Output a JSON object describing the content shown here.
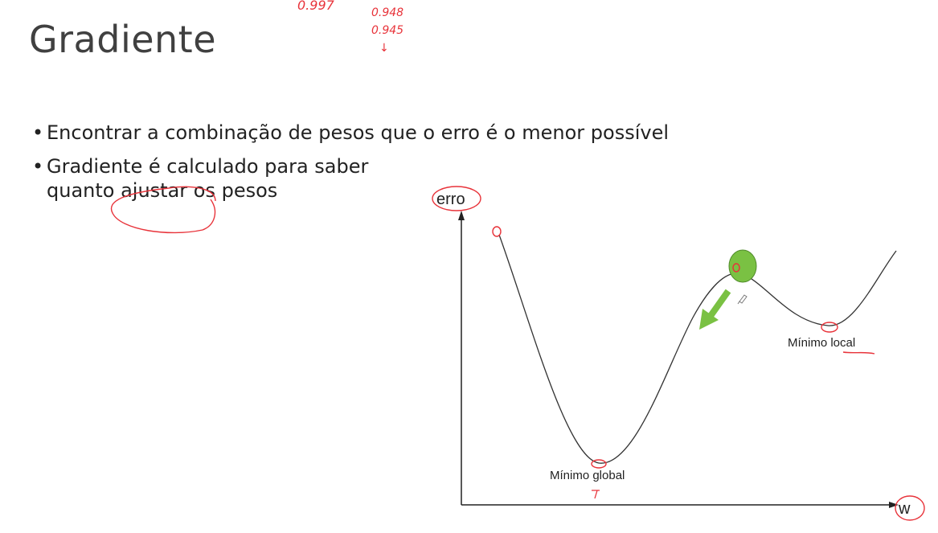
{
  "slide": {
    "title": "Gradiente",
    "bullets": [
      "Encontrar a combinação de pesos que o erro é o menor possível",
      "Gradiente é calculado para saber quanto ajustar os pesos"
    ]
  },
  "diagram": {
    "y_axis_label": "erro",
    "x_axis_label": "w",
    "global_min_label": "Mínimo global",
    "local_min_label": "Mínimo local",
    "ball_color": "#7ac143",
    "arrow_color": "#7ac143",
    "annotation_color": "#e8333a"
  },
  "handwritten_notes": {
    "note_1": "0.997",
    "note_2": "0.948",
    "note_3": "0.945",
    "note_4": "↓"
  }
}
